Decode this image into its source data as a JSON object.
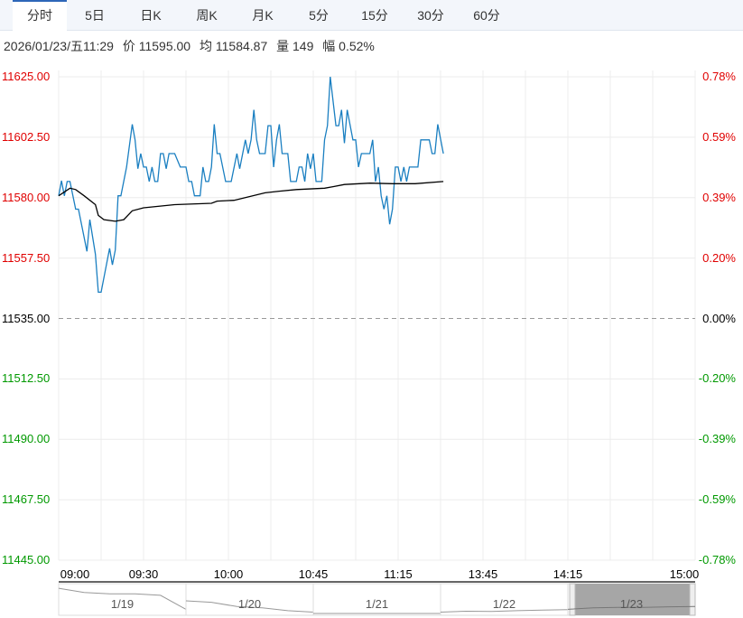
{
  "tabs": [
    "分时",
    "5日",
    "日K",
    "周K",
    "月K",
    "5分",
    "15分",
    "30分",
    "60分"
  ],
  "active_tab": 0,
  "info": {
    "datetime": "2026/01/23/五11:29",
    "price": "价 11595.00",
    "avg": "均 11584.87",
    "volume": "量 149",
    "change": "幅 0.52%"
  },
  "colors": {
    "up": "#e00000",
    "down": "#009900",
    "price_line": "#1a7fc1",
    "avg_line": "#000000",
    "grid": "#ececec"
  },
  "chart_data": {
    "type": "line",
    "y_left_labels": [
      "11625.00",
      "11602.50",
      "11580.00",
      "11557.50",
      "11535.00",
      "11512.50",
      "11490.00",
      "11467.50",
      "11445.00"
    ],
    "y_right_labels": [
      "0.78%",
      "0.59%",
      "0.39%",
      "0.20%",
      "0.00%",
      "-0.20%",
      "-0.39%",
      "-0.59%",
      "-0.78%"
    ],
    "ylim": [
      11445,
      11625
    ],
    "prev_close": 11535,
    "x_unit": "trading minutes since 09:00",
    "xlim": [
      0,
      225
    ],
    "x_ticks": [
      {
        "label": "09:00",
        "m": 0
      },
      {
        "label": "09:30",
        "m": 30
      },
      {
        "label": "10:00",
        "m": 60
      },
      {
        "label": "10:45",
        "m": 90
      },
      {
        "label": "11:15",
        "m": 120
      },
      {
        "label": "13:45",
        "m": 150
      },
      {
        "label": "14:15",
        "m": 180
      },
      {
        "label": "15:00",
        "m": 225
      }
    ],
    "series": [
      {
        "name": "price",
        "points": [
          [
            0,
            11580.7
          ],
          [
            1,
            11586.3
          ],
          [
            2,
            11580.7
          ],
          [
            3,
            11586
          ],
          [
            4,
            11586
          ],
          [
            6,
            11575.7
          ],
          [
            7,
            11575.7
          ],
          [
            10,
            11560
          ],
          [
            11,
            11571.8
          ],
          [
            13,
            11558.9
          ],
          [
            14,
            11544.8
          ],
          [
            15,
            11544.8
          ],
          [
            18,
            11561.1
          ],
          [
            19,
            11555
          ],
          [
            20,
            11560.5
          ],
          [
            21,
            11580.7
          ],
          [
            22,
            11580.7
          ],
          [
            24,
            11591.4
          ],
          [
            26,
            11607.3
          ],
          [
            27,
            11601.5
          ],
          [
            28,
            11590.8
          ],
          [
            29,
            11596.4
          ],
          [
            30,
            11591.4
          ],
          [
            31,
            11591.4
          ],
          [
            32,
            11586
          ],
          [
            33,
            11591.4
          ],
          [
            34,
            11586
          ],
          [
            35,
            11586
          ],
          [
            36,
            11596.4
          ],
          [
            37,
            11596.4
          ],
          [
            38,
            11590.8
          ],
          [
            39,
            11596.4
          ],
          [
            41,
            11596.4
          ],
          [
            43,
            11591.4
          ],
          [
            45,
            11591.4
          ],
          [
            46,
            11586
          ],
          [
            47,
            11586
          ],
          [
            48,
            11580.7
          ],
          [
            50,
            11580.7
          ],
          [
            51,
            11591.4
          ],
          [
            52,
            11586
          ],
          [
            53,
            11586
          ],
          [
            54,
            11591.4
          ],
          [
            55,
            11607.3
          ],
          [
            56,
            11596.4
          ],
          [
            57,
            11596.4
          ],
          [
            59,
            11586
          ],
          [
            61,
            11586
          ],
          [
            63,
            11596.4
          ],
          [
            64,
            11590.8
          ],
          [
            66,
            11601.5
          ],
          [
            67,
            11596.4
          ],
          [
            68,
            11601.5
          ],
          [
            69,
            11612.7
          ],
          [
            70,
            11601.5
          ],
          [
            71,
            11596.4
          ],
          [
            73,
            11596.4
          ],
          [
            74,
            11606.8
          ],
          [
            75,
            11606.8
          ],
          [
            76,
            11591.4
          ],
          [
            77,
            11601.5
          ],
          [
            78,
            11607.3
          ],
          [
            79,
            11596.4
          ],
          [
            81,
            11596.4
          ],
          [
            82,
            11586
          ],
          [
            84,
            11586
          ],
          [
            85,
            11591.4
          ],
          [
            86,
            11591.4
          ],
          [
            87,
            11586
          ],
          [
            88,
            11596.4
          ],
          [
            89,
            11590.8
          ],
          [
            90,
            11596.4
          ],
          [
            91,
            11586
          ],
          [
            93,
            11586
          ],
          [
            94,
            11601.5
          ],
          [
            95,
            11606.8
          ],
          [
            96,
            11625
          ],
          [
            98,
            11606.8
          ],
          [
            99,
            11606.8
          ],
          [
            100,
            11612.7
          ],
          [
            101,
            11600.3
          ],
          [
            102,
            11612.7
          ],
          [
            104,
            11601.5
          ],
          [
            105,
            11601.5
          ],
          [
            106,
            11591.4
          ],
          [
            107,
            11596.4
          ],
          [
            110,
            11596.4
          ],
          [
            111,
            11601.5
          ],
          [
            112,
            11586
          ],
          [
            113,
            11591.4
          ],
          [
            114,
            11580.7
          ],
          [
            115,
            11575.7
          ],
          [
            116,
            11580.7
          ],
          [
            117,
            11570.1
          ],
          [
            118,
            11575.7
          ],
          [
            119,
            11591.4
          ],
          [
            120,
            11591.4
          ],
          [
            121,
            11586
          ],
          [
            122,
            11591.4
          ],
          [
            123,
            11586
          ],
          [
            124,
            11591.4
          ],
          [
            127,
            11591.4
          ],
          [
            128,
            11601.5
          ],
          [
            131,
            11601.5
          ],
          [
            132,
            11596.4
          ],
          [
            133,
            11596.4
          ],
          [
            134,
            11607.3
          ],
          [
            136,
            11596.4
          ]
        ]
      },
      {
        "name": "average",
        "points": [
          [
            0,
            11580.7
          ],
          [
            4,
            11583.5
          ],
          [
            6,
            11583
          ],
          [
            9,
            11580.7
          ],
          [
            13,
            11577.4
          ],
          [
            14,
            11573.4
          ],
          [
            16,
            11571.8
          ],
          [
            20,
            11571.2
          ],
          [
            23,
            11571.8
          ],
          [
            26,
            11575.1
          ],
          [
            30,
            11576.2
          ],
          [
            41,
            11577.4
          ],
          [
            54,
            11577.9
          ],
          [
            56,
            11578.7
          ],
          [
            62,
            11579
          ],
          [
            73,
            11581.8
          ],
          [
            78,
            11582.4
          ],
          [
            84,
            11583
          ],
          [
            94,
            11583.5
          ],
          [
            97,
            11584.1
          ],
          [
            101,
            11584.9
          ],
          [
            110,
            11585.4
          ],
          [
            118,
            11585.2
          ],
          [
            126,
            11585.2
          ],
          [
            136,
            11586
          ]
        ]
      }
    ]
  },
  "navigator": {
    "days": [
      "1/19",
      "1/20",
      "1/21",
      "1/22",
      "1/23"
    ],
    "selected": 4
  }
}
